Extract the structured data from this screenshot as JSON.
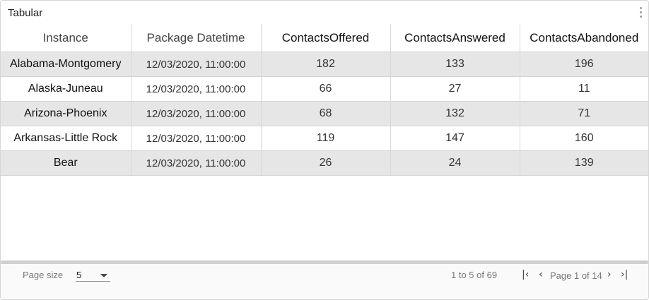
{
  "panel": {
    "title": "Tabular"
  },
  "table": {
    "columns": [
      "Instance",
      "Package Datetime",
      "ContactsOffered",
      "ContactsAnswered",
      "ContactsAbandoned"
    ],
    "rows": [
      [
        "Alabama-Montgomery",
        "12/03/2020, 11:00:00",
        "182",
        "133",
        "196"
      ],
      [
        "Alaska-Juneau",
        "12/03/2020, 11:00:00",
        "66",
        "27",
        "11"
      ],
      [
        "Arizona-Phoenix",
        "12/03/2020, 11:00:00",
        "68",
        "132",
        "71"
      ],
      [
        "Arkansas-Little Rock",
        "12/03/2020, 11:00:00",
        "119",
        "147",
        "160"
      ],
      [
        "Bear",
        "12/03/2020, 11:00:00",
        "26",
        "24",
        "139"
      ]
    ]
  },
  "pagination": {
    "page_size_label": "Page size",
    "page_size_value": "5",
    "range_text": "1 to 5 of 69",
    "page_text": "Page 1 of 14",
    "first_icon": "first-page-icon",
    "prev_icon": "prev-page-icon",
    "next_icon": "next-page-icon",
    "last_icon": "last-page-icon"
  }
}
